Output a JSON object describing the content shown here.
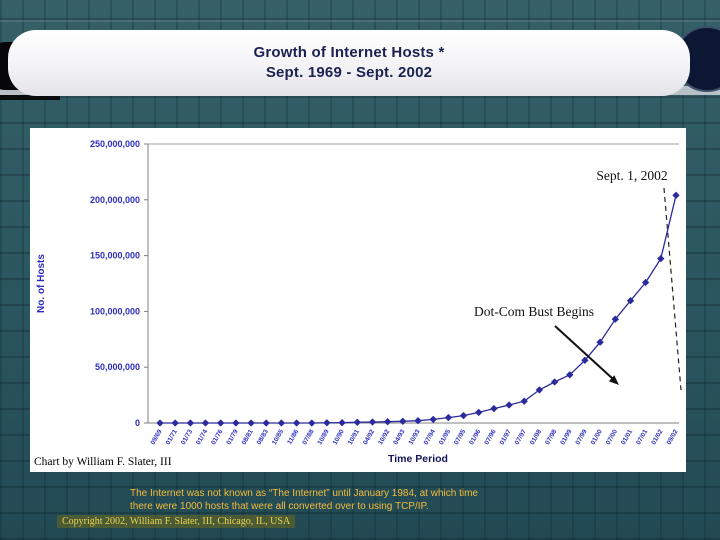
{
  "slide": {
    "title_line1": "Growth of Internet Hosts *",
    "title_line2": "Sept. 1969 - Sept. 2002",
    "credit": "Chart by William F. Slater, III",
    "note_line1": "The Internet was not known as “The Internet” until January 1984, at which time",
    "note_line2": "there were 1000 hosts that were all converted over to using TCP/IP.",
    "copyright": "Copyright 2002, William F. Slater, III, Chicago, IL, USA"
  },
  "chart_data": {
    "type": "line",
    "title": "",
    "xlabel": "Time Period",
    "ylabel": "No. of Hosts",
    "ylim": [
      0,
      250000000
    ],
    "ytick_step": 50000000,
    "ytick_labels": [
      "0",
      "50,000,000",
      "100,000,000",
      "150,000,000",
      "200,000,000",
      "250,000,000"
    ],
    "grid": "top-line-only",
    "legend": "none",
    "series_color": "#2b2b9e",
    "marker": "diamond",
    "categories": [
      "09/69",
      "01/71",
      "01/73",
      "01/74",
      "01/76",
      "01/79",
      "08/81",
      "08/83",
      "10/85",
      "11/86",
      "07/88",
      "10/89",
      "10/90",
      "10/91",
      "04/92",
      "10/92",
      "04/93",
      "10/93",
      "07/94",
      "01/95",
      "07/95",
      "01/96",
      "07/96",
      "01/97",
      "07/97",
      "01/98",
      "07/98",
      "01/99",
      "07/99",
      "01/00",
      "07/00",
      "01/01",
      "07/01",
      "01/02",
      "09/02"
    ],
    "values": [
      4,
      23,
      35,
      62,
      111,
      188,
      213,
      562,
      1961,
      5089,
      33000,
      159000,
      313000,
      617000,
      890000,
      1136000,
      1486000,
      2056000,
      3212000,
      4852000,
      6642000,
      9472000,
      12881000,
      16146000,
      19540000,
      29670000,
      36739000,
      43230000,
      56218000,
      72398092,
      93047785,
      109574429,
      125888197,
      147344723,
      204000000
    ],
    "annotations": [
      {
        "id": "sept-2002",
        "text": "Sept. 1, 2002",
        "style": "dashed-leader-line"
      },
      {
        "id": "dotcom-bust",
        "text": "Dot-Com Bust Begins",
        "style": "solid-arrow"
      }
    ]
  }
}
